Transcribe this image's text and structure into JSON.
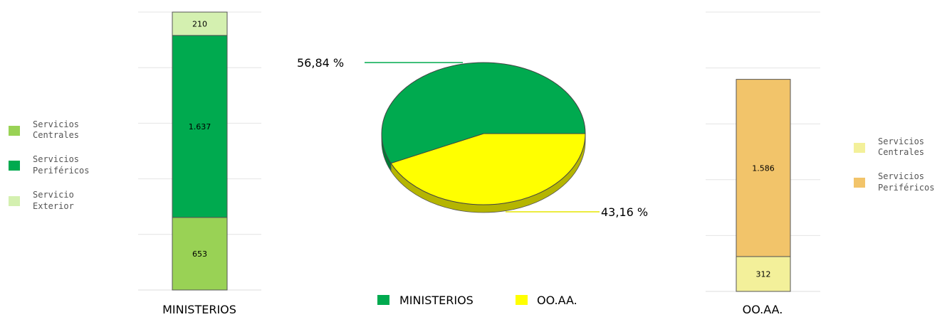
{
  "chart_data": [
    {
      "type": "bar",
      "stacked": true,
      "categories": [
        "MINISTERIOS"
      ],
      "series": [
        {
          "name": "Servicios Centrales",
          "values": [
            653
          ],
          "label": "653",
          "color": "#99d255"
        },
        {
          "name": "Servicios Periféricos",
          "values": [
            1637
          ],
          "label": "1.637",
          "color": "#00aa4f"
        },
        {
          "name": "Servicio Exterior",
          "values": [
            210
          ],
          "label": "210",
          "color": "#d4f0b0"
        }
      ],
      "legend": {
        "position": "left",
        "items": [
          {
            "line1": "Servicios",
            "line2": "Centrales",
            "color": "#99d255"
          },
          {
            "line1": "Servicios",
            "line2": "Periféricos",
            "color": "#00aa4f"
          },
          {
            "line1": "Servicio",
            "line2": "Exterior",
            "color": "#d4f0b0"
          }
        ]
      },
      "ylim": [
        0,
        2500
      ],
      "grid": true
    },
    {
      "type": "pie",
      "slices": [
        {
          "name": "MINISTERIOS",
          "value": 56.84,
          "label": "56,84 %",
          "color": "#00aa4f",
          "dark": "#007a36"
        },
        {
          "name": "OO.AA.",
          "value": 43.16,
          "label": "43,16 %",
          "color": "#ffff00",
          "dark": "#b5b500"
        }
      ],
      "legend": {
        "position": "bottom"
      }
    },
    {
      "type": "bar",
      "stacked": true,
      "categories": [
        "OO.AA."
      ],
      "series": [
        {
          "name": "Servicios Centrales",
          "values": [
            312
          ],
          "label": "312",
          "color": "#f3f09a"
        },
        {
          "name": "Servicios Periféricos",
          "values": [
            1586
          ],
          "label": "1.586",
          "color": "#f2c46a"
        }
      ],
      "legend": {
        "position": "right",
        "items": [
          {
            "line1": "Servicios",
            "line2": "Centrales",
            "color": "#f3f09a"
          },
          {
            "line1": "Servicios",
            "line2": "Periféricos",
            "color": "#f2c46a"
          }
        ]
      },
      "ylim": [
        0,
        2500
      ],
      "grid": true
    }
  ]
}
